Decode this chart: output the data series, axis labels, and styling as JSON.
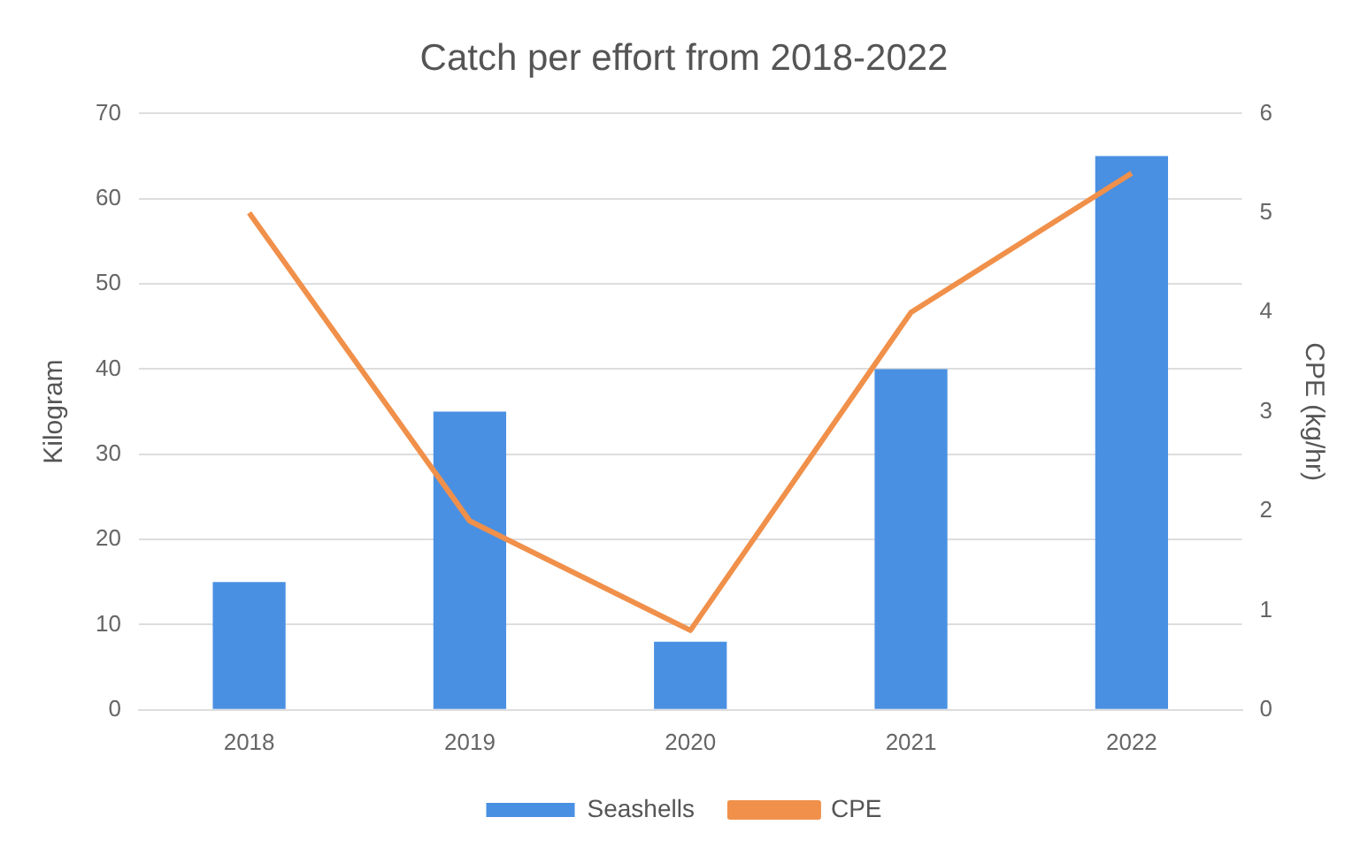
{
  "chart_data": {
    "type": "bar",
    "title": "Catch per effort from 2018-2022",
    "categories": [
      "2018",
      "2019",
      "2020",
      "2021",
      "2022"
    ],
    "series": [
      {
        "name": "Seashells",
        "color": "#4a90e2",
        "values": [
          15,
          35,
          8,
          40,
          65
        ]
      },
      {
        "name": "CPE",
        "type": "line",
        "axis": "y2",
        "color": "#f0904a",
        "marker": "none",
        "values": [
          5.0,
          1.9,
          0.8,
          4.0,
          5.4
        ]
      }
    ],
    "ylabel": "Kilogram",
    "y2label": "CPE (kg/hr)",
    "ylim": [
      0,
      70
    ],
    "yticks": [
      0,
      10,
      20,
      30,
      40,
      50,
      60,
      70
    ],
    "y2lim": [
      0,
      6
    ],
    "y2ticks": [
      0,
      1,
      2,
      3,
      4,
      5,
      6
    ],
    "grid": "y",
    "legend": "bottom"
  }
}
